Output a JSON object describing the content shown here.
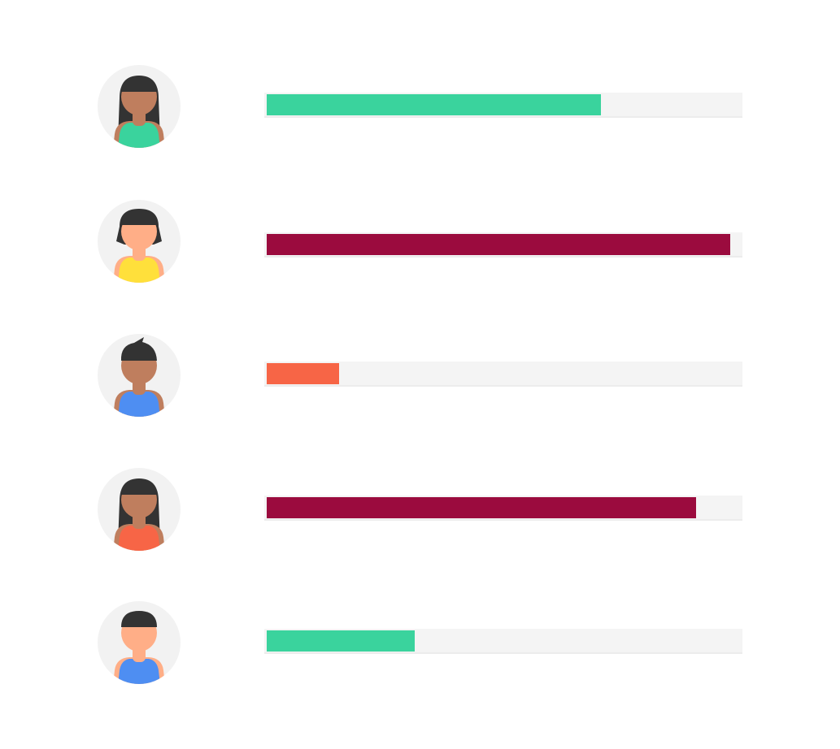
{
  "palette": {
    "green": "#3ad39d",
    "crimson": "#9b0b3e",
    "coral": "#f76546",
    "track": "#f4f4f4",
    "avatar_bg": "#f2f2f2",
    "hair": "#333333"
  },
  "people": [
    {
      "avatar": {
        "icon": "woman-long-hair-avatar-icon",
        "skin": "#bf7e5e",
        "shirt": "#3ad39d",
        "style": "long-hair"
      },
      "progress": 0.706,
      "bar_color": "#3ad39d"
    },
    {
      "avatar": {
        "icon": "woman-bob-hair-avatar-icon",
        "skin": "#ffae87",
        "shirt": "#ffe03b",
        "style": "bob-hair"
      },
      "progress": 0.979,
      "bar_color": "#9b0b3e"
    },
    {
      "avatar": {
        "icon": "man-spiky-hair-avatar-icon",
        "skin": "#bf7e5e",
        "shirt": "#4e8ef2",
        "style": "spiky-hair"
      },
      "progress": 0.153,
      "bar_color": "#f76546"
    },
    {
      "avatar": {
        "icon": "woman-long-hair-avatar-icon",
        "skin": "#bf7e5e",
        "shirt": "#f76546",
        "style": "long-hair"
      },
      "progress": 0.907,
      "bar_color": "#9b0b3e"
    },
    {
      "avatar": {
        "icon": "man-short-hair-avatar-icon",
        "skin": "#ffae87",
        "shirt": "#4e8ef2",
        "style": "short-hair"
      },
      "progress": 0.312,
      "bar_color": "#3ad39d"
    }
  ]
}
